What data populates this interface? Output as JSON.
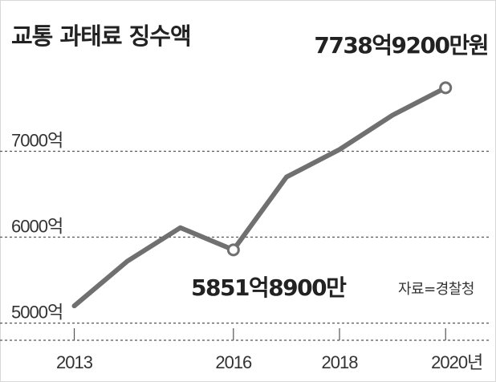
{
  "title": "교통 과태료 징수액",
  "source": "자료=경찰청",
  "chart_data": {
    "type": "line",
    "title": "교통 과태료 징수액",
    "x": [
      2013,
      2014,
      2015,
      2016,
      2017,
      2018,
      2019,
      2020
    ],
    "x_tick_labels": [
      "2013",
      "2016",
      "2018",
      "2020년"
    ],
    "x_tick_values": [
      2013,
      2016,
      2018,
      2020
    ],
    "series": [
      {
        "values": [
          5200,
          5720,
          6110,
          5851.89,
          6700,
          7020,
          7420,
          7738.92
        ],
        "color": "#707070"
      }
    ],
    "y_tick_labels": [
      "5000억",
      "6000억",
      "7000억"
    ],
    "y_tick_values": [
      5000,
      6000,
      7000
    ],
    "ylim": [
      4800,
      8200
    ],
    "xlim": [
      2011.6,
      2020.95
    ],
    "grid": "horizontal-dashed",
    "annotations": [
      {
        "text": "7738억9200만원",
        "x": 2020,
        "y": 7738.92,
        "marker": true
      },
      {
        "text": "5851억8900만",
        "x": 2016,
        "y": 5851.89,
        "marker": true
      }
    ],
    "unit": "억"
  }
}
